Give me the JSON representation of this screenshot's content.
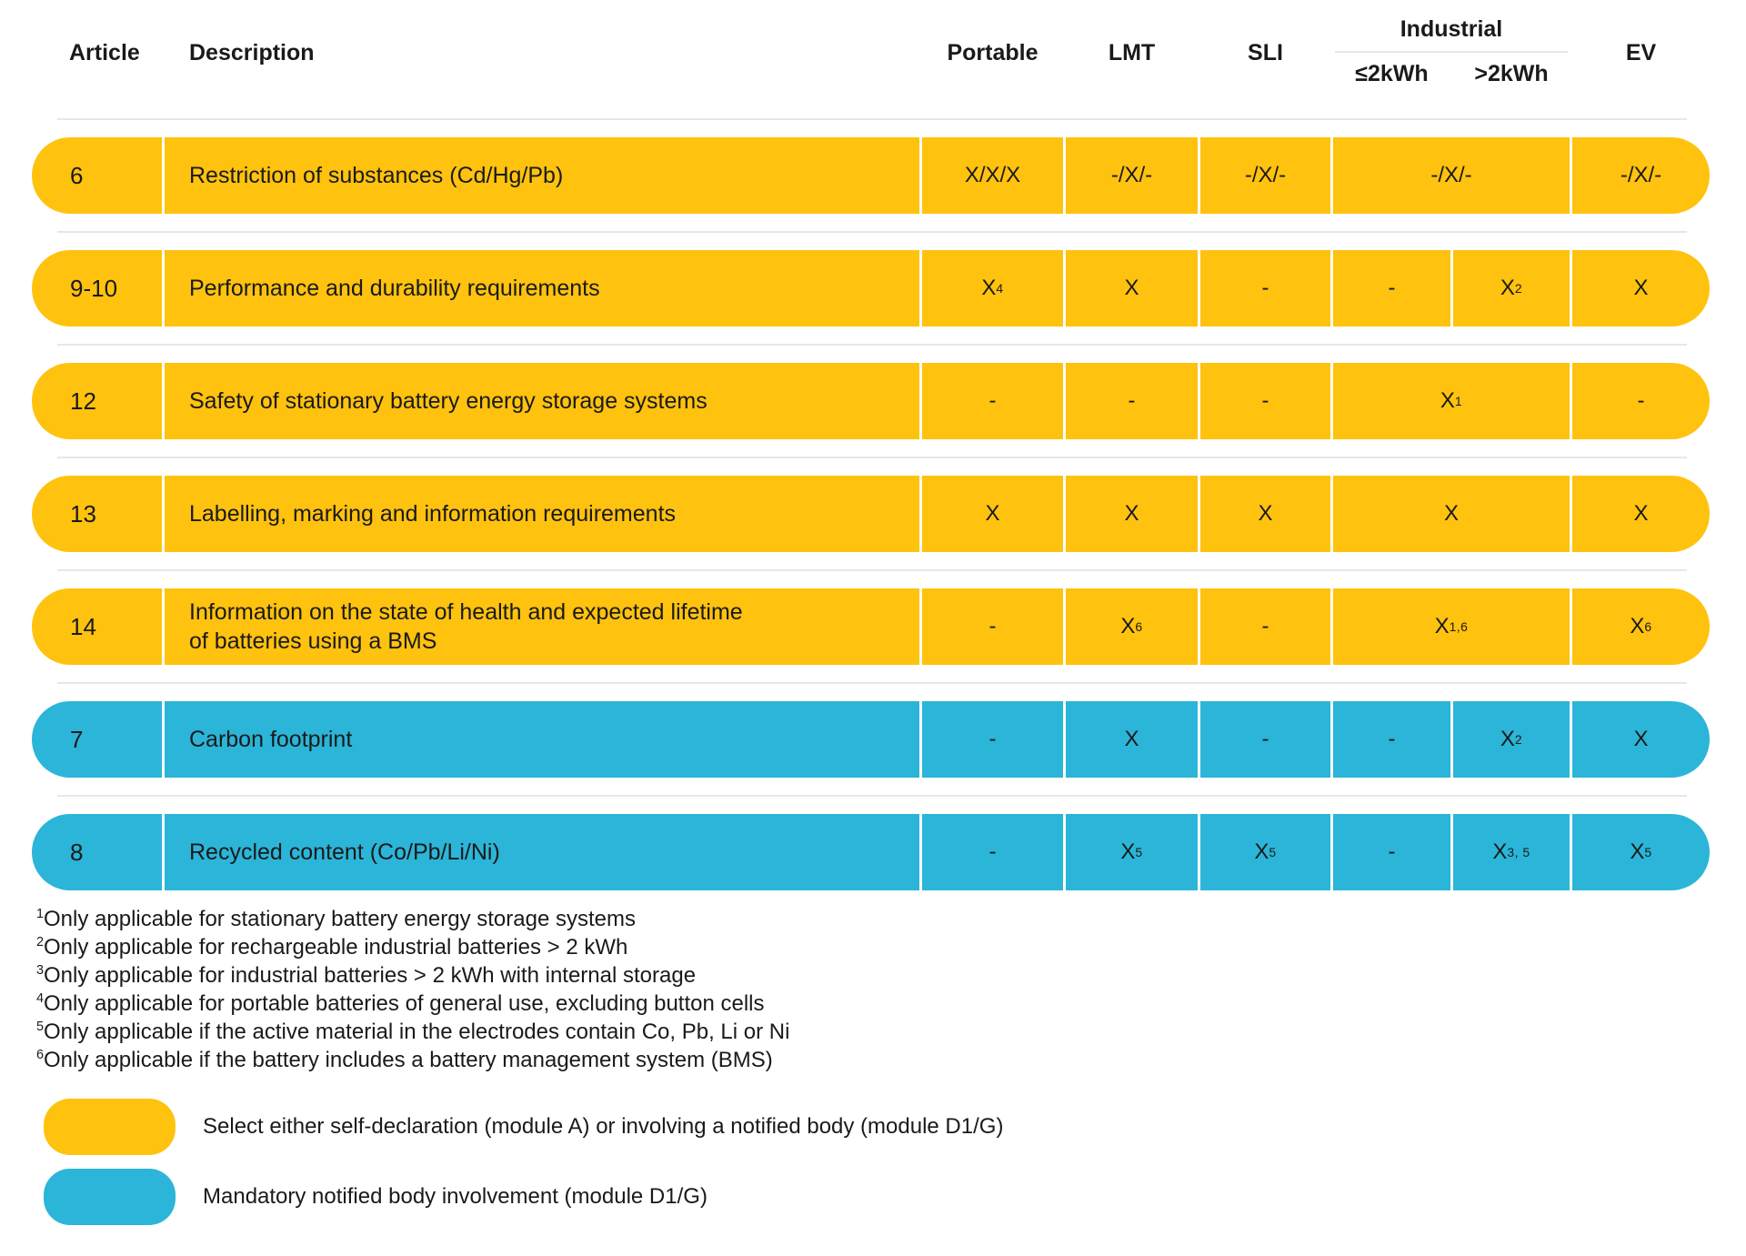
{
  "colors": {
    "yellow": "#FFC20E",
    "blue": "#2BB5D8",
    "divider": "#E7E7E7",
    "text": "#1A1A1A"
  },
  "header": {
    "article": "Article",
    "description": "Description",
    "portable": "Portable",
    "lmt": "LMT",
    "sli": "SLI",
    "industrial": {
      "label": "Industrial",
      "sub_le": "≤2kWh",
      "sub_gt": ">2kWh"
    },
    "ev": "EV"
  },
  "rows": [
    {
      "article": "6",
      "description": "Restriction of substances (Cd/Hg/Pb)",
      "color": "yellow",
      "portable": {
        "t": "X/X/X"
      },
      "lmt": {
        "t": "-/X/-"
      },
      "sli": {
        "t": "-/X/-"
      },
      "industrial": {
        "merged": {
          "t": "-/X/-"
        }
      },
      "ev": {
        "t": "-/X/-"
      }
    },
    {
      "article": "9-10",
      "description": "Performance and durability requirements",
      "color": "yellow",
      "portable": {
        "t": "X",
        "s": "4"
      },
      "lmt": {
        "t": "X"
      },
      "sli": {
        "t": "-"
      },
      "industrial": {
        "le": {
          "t": "-"
        },
        "gt": {
          "t": "X",
          "s": "2"
        }
      },
      "ev": {
        "t": "X"
      }
    },
    {
      "article": "12",
      "description": "Safety of stationary battery energy storage systems",
      "color": "yellow",
      "portable": {
        "t": "-"
      },
      "lmt": {
        "t": "-"
      },
      "sli": {
        "t": "-"
      },
      "industrial": {
        "merged": {
          "t": "X",
          "s": "1"
        }
      },
      "ev": {
        "t": "-"
      }
    },
    {
      "article": "13",
      "description": "Labelling, marking and information requirements",
      "color": "yellow",
      "portable": {
        "t": "X"
      },
      "lmt": {
        "t": "X"
      },
      "sli": {
        "t": "X"
      },
      "industrial": {
        "merged": {
          "t": "X"
        }
      },
      "ev": {
        "t": "X"
      }
    },
    {
      "article": "14",
      "description": "Information on the state of health and expected lifetime\nof batteries using a BMS",
      "color": "yellow",
      "portable": {
        "t": "-"
      },
      "lmt": {
        "t": "X",
        "s": "6"
      },
      "sli": {
        "t": "-"
      },
      "industrial": {
        "merged": {
          "t": "X",
          "s": "1,6"
        }
      },
      "ev": {
        "t": "X",
        "s": "6"
      }
    },
    {
      "article": "7",
      "description": "Carbon footprint",
      "color": "blue",
      "portable": {
        "t": "-"
      },
      "lmt": {
        "t": "X"
      },
      "sli": {
        "t": "-"
      },
      "industrial": {
        "le": {
          "t": "-"
        },
        "gt": {
          "t": "X",
          "s": "2"
        }
      },
      "ev": {
        "t": "X"
      }
    },
    {
      "article": "8",
      "description": "Recycled content (Co/Pb/Li/Ni)",
      "color": "blue",
      "portable": {
        "t": "-"
      },
      "lmt": {
        "t": "X",
        "s": "5"
      },
      "sli": {
        "t": "X",
        "s": "5"
      },
      "industrial": {
        "le": {
          "t": "-"
        },
        "gt": {
          "t": "X",
          "s": "3, 5"
        }
      },
      "ev": {
        "t": "X",
        "s": "5"
      }
    }
  ],
  "footnotes": [
    {
      "sup": "1",
      "text": "Only applicable for stationary battery energy storage systems"
    },
    {
      "sup": "2",
      "text": "Only applicable for rechargeable industrial batteries > 2 kWh"
    },
    {
      "sup": "3",
      "text": "Only applicable for industrial batteries > 2 kWh with internal storage"
    },
    {
      "sup": "4",
      "text": "Only applicable for portable batteries of general use, excluding button cells"
    },
    {
      "sup": "5",
      "text": "Only applicable if the active material in the electrodes contain Co, Pb, Li or Ni"
    },
    {
      "sup": "6",
      "text": "Only applicable if the battery includes a battery management system (BMS)"
    }
  ],
  "legend": [
    {
      "color": "yellow",
      "text": "Select either self-declaration (module A) or involving a notified body (module D1/G)"
    },
    {
      "color": "blue",
      "text": "Mandatory notified body involvement (module D1/G)"
    }
  ]
}
